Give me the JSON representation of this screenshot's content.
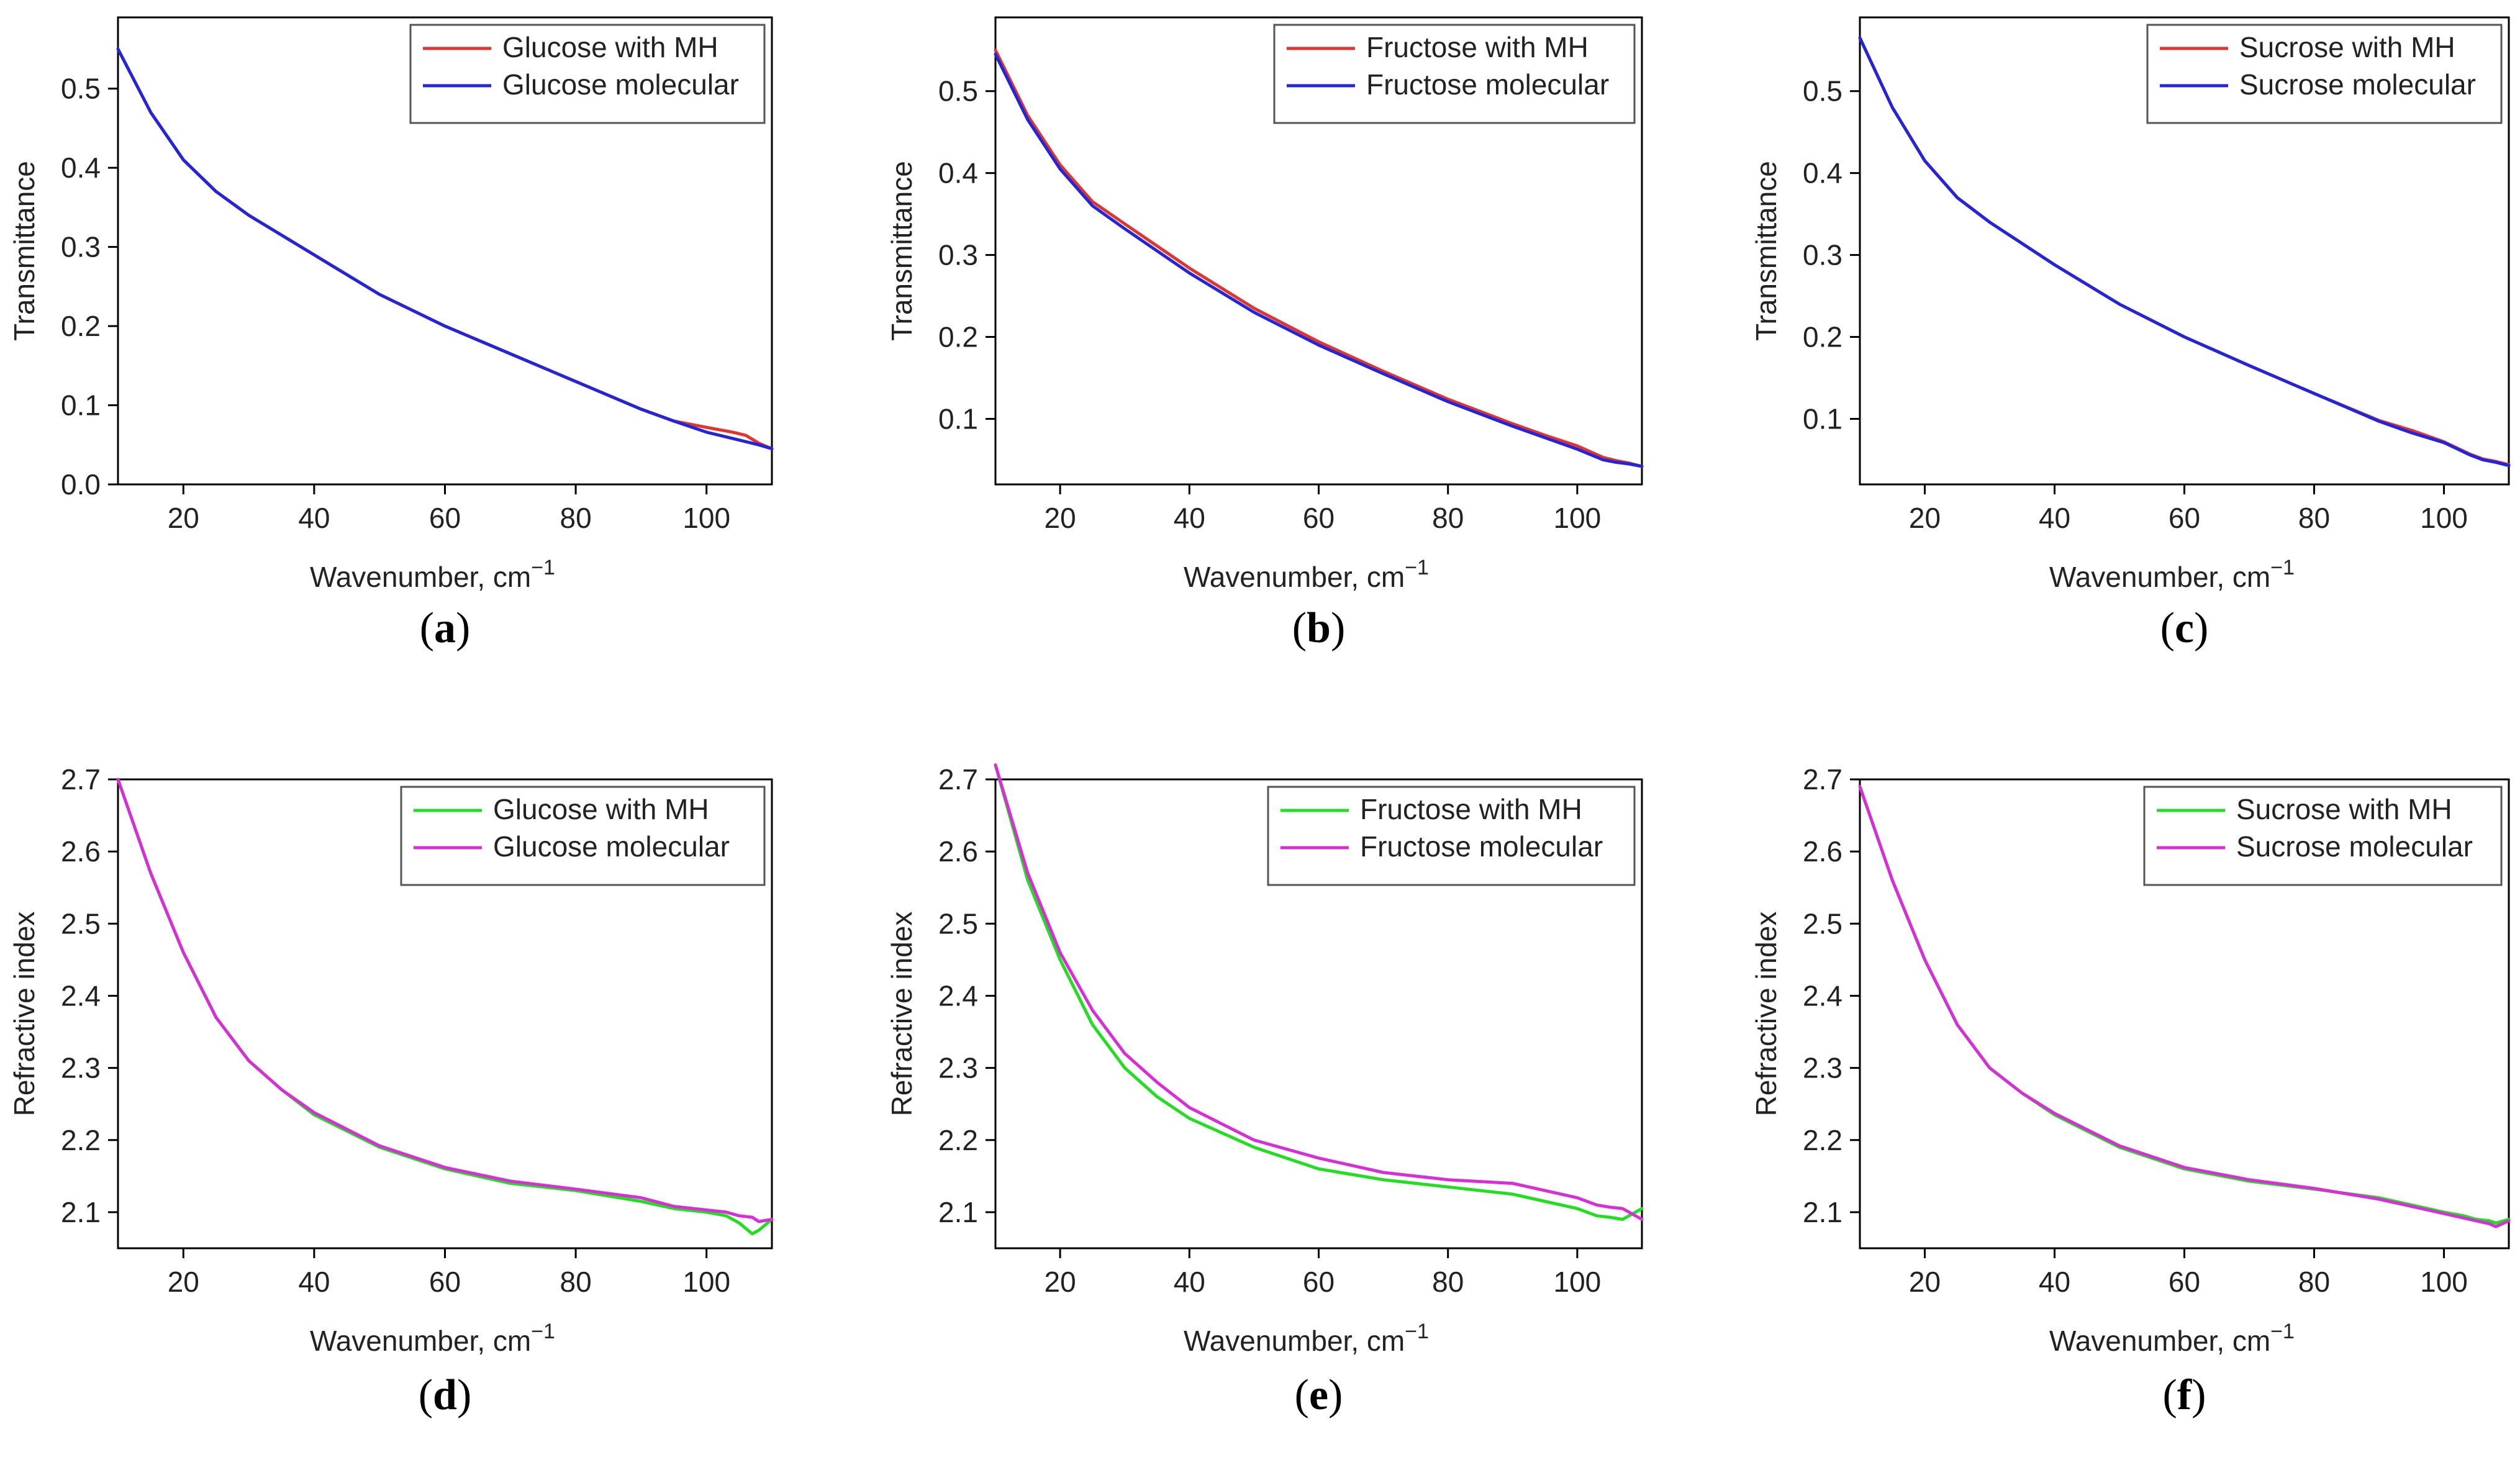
{
  "figure": {
    "colors": {
      "red": "#e0342e",
      "blue": "#2424d8",
      "green": "#22dd22",
      "magenta": "#d62fd6",
      "axis": "#000000",
      "legend_border": "#555555"
    }
  },
  "chart_data": [
    {
      "id": "a",
      "caption": "a",
      "type": "line",
      "xlabel": "Wavenumber, cm",
      "xlabel_sup": "−1",
      "ylabel": "Transmittance",
      "xlim": [
        10,
        110
      ],
      "ylim": [
        0.0,
        0.59
      ],
      "xticks": [
        "20",
        "40",
        "60",
        "80",
        "100"
      ],
      "yticks": [
        "0.0",
        "0.1",
        "0.2",
        "0.3",
        "0.4",
        "0.5"
      ],
      "legend_position": "top-right",
      "x": [
        10,
        15,
        20,
        25,
        30,
        40,
        50,
        60,
        70,
        80,
        90,
        95,
        100,
        104,
        106,
        108,
        110
      ],
      "series": [
        {
          "name": "Glucose with MH",
          "color": "#e0342e",
          "values": [
            0.55,
            0.47,
            0.41,
            0.37,
            0.34,
            0.29,
            0.24,
            0.2,
            0.165,
            0.13,
            0.095,
            0.08,
            0.072,
            0.066,
            0.062,
            0.052,
            0.045
          ]
        },
        {
          "name": "Glucose molecular",
          "color": "#2424d8",
          "values": [
            0.55,
            0.47,
            0.41,
            0.37,
            0.34,
            0.29,
            0.24,
            0.2,
            0.165,
            0.13,
            0.095,
            0.08,
            0.066,
            0.058,
            0.054,
            0.05,
            0.045
          ]
        }
      ]
    },
    {
      "id": "b",
      "caption": "b",
      "type": "line",
      "xlabel": "Wavenumber, cm",
      "xlabel_sup": "−1",
      "ylabel": "Transmittance",
      "xlim": [
        10,
        110
      ],
      "ylim": [
        0.02,
        0.59
      ],
      "xticks": [
        "20",
        "40",
        "60",
        "80",
        "100"
      ],
      "yticks": [
        "0.1",
        "0.2",
        "0.3",
        "0.4",
        "0.5"
      ],
      "legend_position": "top-right",
      "x": [
        10,
        15,
        20,
        25,
        30,
        40,
        50,
        60,
        70,
        80,
        90,
        95,
        100,
        104,
        106,
        108,
        110
      ],
      "series": [
        {
          "name": "Fructose with MH",
          "color": "#e0342e",
          "values": [
            0.55,
            0.47,
            0.41,
            0.365,
            0.338,
            0.284,
            0.235,
            0.194,
            0.158,
            0.124,
            0.094,
            0.08,
            0.067,
            0.053,
            0.049,
            0.046,
            0.042
          ]
        },
        {
          "name": "Fructose molecular",
          "color": "#2424d8",
          "values": [
            0.545,
            0.465,
            0.405,
            0.36,
            0.332,
            0.278,
            0.23,
            0.19,
            0.155,
            0.121,
            0.091,
            0.077,
            0.063,
            0.05,
            0.047,
            0.045,
            0.042
          ]
        }
      ]
    },
    {
      "id": "c",
      "caption": "c",
      "type": "line",
      "xlabel": "Wavenumber, cm",
      "xlabel_sup": "−1",
      "ylabel": "Transmittance",
      "xlim": [
        10,
        110
      ],
      "ylim": [
        0.02,
        0.59
      ],
      "xticks": [
        "20",
        "40",
        "60",
        "80",
        "100"
      ],
      "yticks": [
        "0.1",
        "0.2",
        "0.3",
        "0.4",
        "0.5"
      ],
      "legend_position": "top-right",
      "x": [
        10,
        15,
        20,
        25,
        30,
        40,
        50,
        60,
        70,
        80,
        90,
        95,
        100,
        104,
        106,
        108,
        110
      ],
      "series": [
        {
          "name": "Sucrose with MH",
          "color": "#e0342e",
          "values": [
            0.565,
            0.48,
            0.415,
            0.37,
            0.34,
            0.288,
            0.24,
            0.2,
            0.165,
            0.131,
            0.098,
            0.086,
            0.072,
            0.057,
            0.051,
            0.048,
            0.044
          ]
        },
        {
          "name": "Sucrose molecular",
          "color": "#2424d8",
          "values": [
            0.565,
            0.48,
            0.415,
            0.37,
            0.34,
            0.288,
            0.24,
            0.2,
            0.165,
            0.131,
            0.097,
            0.083,
            0.071,
            0.056,
            0.05,
            0.047,
            0.043
          ]
        }
      ]
    },
    {
      "id": "d",
      "caption": "d",
      "type": "line",
      "xlabel": "Wavenumber, cm",
      "xlabel_sup": "−1",
      "ylabel": "Refractive index",
      "xlim": [
        10,
        110
      ],
      "ylim": [
        2.05,
        2.7
      ],
      "xticks": [
        "20",
        "40",
        "60",
        "80",
        "100"
      ],
      "yticks": [
        "2.1",
        "2.2",
        "2.3",
        "2.4",
        "2.5",
        "2.6",
        "2.7"
      ],
      "legend_position": "top-right",
      "x": [
        10,
        15,
        20,
        25,
        30,
        35,
        40,
        50,
        60,
        70,
        80,
        90,
        95,
        100,
        103,
        105,
        107,
        108,
        110
      ],
      "series": [
        {
          "name": "Glucose with MH",
          "color": "#22dd22",
          "values": [
            2.7,
            2.57,
            2.46,
            2.37,
            2.31,
            2.27,
            2.235,
            2.19,
            2.16,
            2.14,
            2.13,
            2.115,
            2.105,
            2.1,
            2.095,
            2.085,
            2.07,
            2.075,
            2.09
          ]
        },
        {
          "name": "Glucose molecular",
          "color": "#d62fd6",
          "values": [
            2.7,
            2.57,
            2.46,
            2.37,
            2.31,
            2.27,
            2.238,
            2.192,
            2.162,
            2.143,
            2.132,
            2.12,
            2.108,
            2.103,
            2.1,
            2.095,
            2.093,
            2.087,
            2.09
          ]
        }
      ]
    },
    {
      "id": "e",
      "caption": "e",
      "type": "line",
      "xlabel": "Wavenumber, cm",
      "xlabel_sup": "−1",
      "ylabel": "Refractive index",
      "xlim": [
        10,
        110
      ],
      "ylim": [
        2.05,
        2.7
      ],
      "xticks": [
        "20",
        "40",
        "60",
        "80",
        "100"
      ],
      "yticks": [
        "2.1",
        "2.2",
        "2.3",
        "2.4",
        "2.5",
        "2.6",
        "2.7"
      ],
      "legend_position": "top-right",
      "x": [
        10,
        15,
        20,
        25,
        30,
        35,
        40,
        50,
        60,
        70,
        80,
        90,
        95,
        100,
        103,
        105,
        107,
        108,
        110
      ],
      "series": [
        {
          "name": "Fructose with MH",
          "color": "#22dd22",
          "values": [
            2.72,
            2.56,
            2.45,
            2.36,
            2.3,
            2.26,
            2.23,
            2.19,
            2.16,
            2.145,
            2.135,
            2.125,
            2.115,
            2.105,
            2.095,
            2.093,
            2.09,
            2.095,
            2.105
          ]
        },
        {
          "name": "Fructose molecular",
          "color": "#d62fd6",
          "values": [
            2.72,
            2.57,
            2.46,
            2.38,
            2.32,
            2.28,
            2.245,
            2.2,
            2.175,
            2.155,
            2.145,
            2.14,
            2.13,
            2.12,
            2.11,
            2.107,
            2.105,
            2.1,
            2.09
          ]
        }
      ]
    },
    {
      "id": "f",
      "caption": "f",
      "type": "line",
      "xlabel": "Wavenumber, cm",
      "xlabel_sup": "−1",
      "ylabel": "Refractive index",
      "xlim": [
        10,
        110
      ],
      "ylim": [
        2.05,
        2.7
      ],
      "xticks": [
        "20",
        "40",
        "60",
        "80",
        "100"
      ],
      "yticks": [
        "2.1",
        "2.2",
        "2.3",
        "2.4",
        "2.5",
        "2.6",
        "2.7"
      ],
      "legend_position": "top-right",
      "x": [
        10,
        15,
        20,
        25,
        30,
        35,
        40,
        50,
        60,
        70,
        80,
        90,
        95,
        100,
        103,
        105,
        107,
        108,
        110
      ],
      "series": [
        {
          "name": "Sucrose with MH",
          "color": "#22dd22",
          "values": [
            2.69,
            2.56,
            2.45,
            2.36,
            2.3,
            2.265,
            2.235,
            2.19,
            2.16,
            2.143,
            2.132,
            2.12,
            2.11,
            2.1,
            2.095,
            2.09,
            2.088,
            2.085,
            2.09
          ]
        },
        {
          "name": "Sucrose molecular",
          "color": "#d62fd6",
          "values": [
            2.69,
            2.56,
            2.45,
            2.36,
            2.3,
            2.265,
            2.237,
            2.192,
            2.162,
            2.145,
            2.133,
            2.118,
            2.108,
            2.098,
            2.092,
            2.088,
            2.084,
            2.08,
            2.088
          ]
        }
      ]
    }
  ]
}
